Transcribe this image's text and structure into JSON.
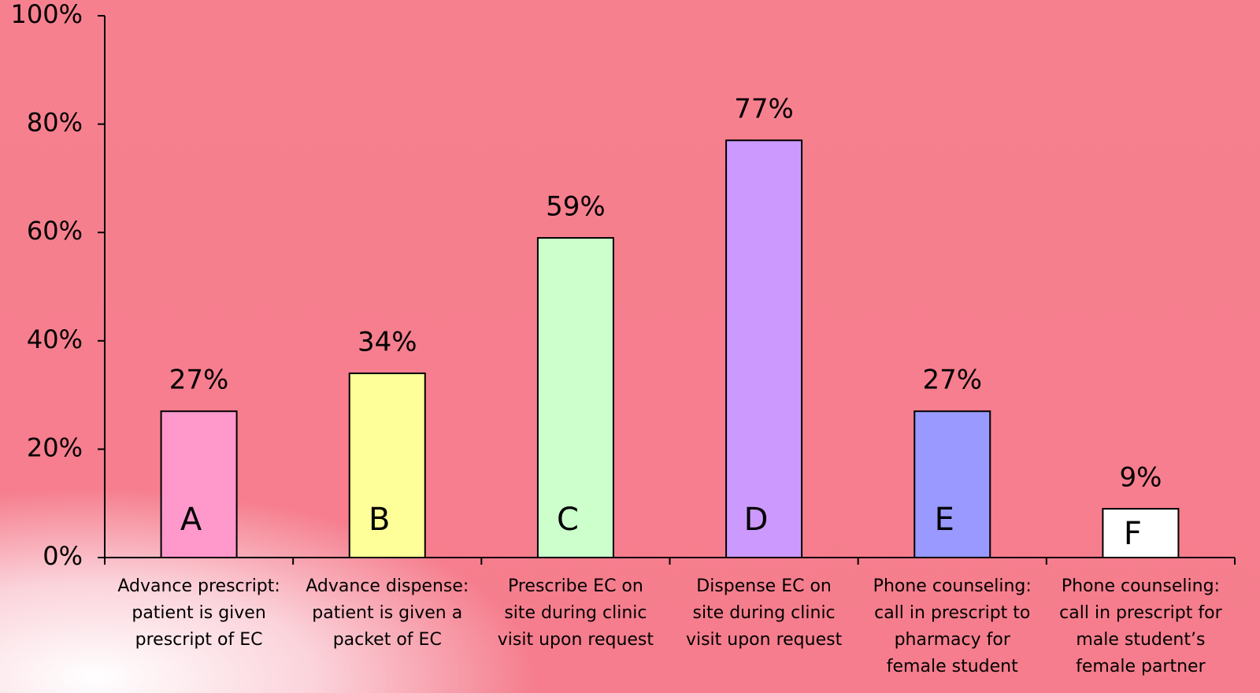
{
  "chart_data": {
    "type": "bar",
    "categories": [
      "Advance prescript:\npatient is given\nprescript of EC",
      "Advance dispense:\npatient is given a\npacket of EC",
      "Prescribe EC on\nsite during clinic\nvisit upon request",
      "Dispense EC on\nsite during clinic\nvisit upon request",
      "Phone counseling:\ncall in prescript to\npharmacy for\nfemale student",
      "Phone counseling:\ncall in prescript for\nmale student’s\nfemale partner"
    ],
    "values": [
      27,
      34,
      59,
      77,
      27,
      9
    ],
    "value_labels": [
      "27%",
      "34%",
      "59%",
      "77%",
      "27%",
      "9%"
    ],
    "bar_labels": [
      "A",
      "B",
      "C",
      "D",
      "E",
      "F"
    ],
    "colors": [
      "#ff99cc",
      "#ffff99",
      "#ccffcc",
      "#cc99ff",
      "#9999ff",
      "#ffffff"
    ],
    "ylim": [
      0,
      100
    ],
    "yticks": [
      {
        "value": 0,
        "label": "0%"
      },
      {
        "value": 20,
        "label": "20%"
      },
      {
        "value": 40,
        "label": "40%"
      },
      {
        "value": 60,
        "label": "60%"
      },
      {
        "value": 80,
        "label": "80%"
      },
      {
        "value": 100,
        "label": "100%"
      }
    ]
  }
}
